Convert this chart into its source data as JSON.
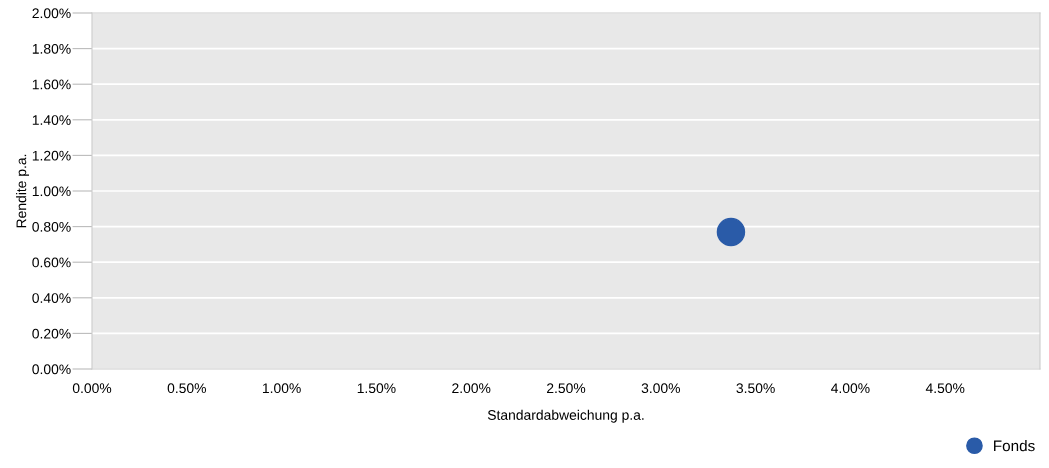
{
  "chart_data": {
    "type": "scatter",
    "xlabel": "Standardabweichung p.a.",
    "ylabel": "Rendite p.a.",
    "x": [
      3.37
    ],
    "series": [
      {
        "name": "Fonds",
        "color": "#2a5ba8",
        "values": [
          0.77
        ]
      }
    ],
    "xlim": [
      0,
      5
    ],
    "ylim": [
      0,
      2
    ],
    "xticks": [
      {
        "value": 0,
        "label": "0.00%"
      },
      {
        "value": 0.5,
        "label": "0.50%"
      },
      {
        "value": 1,
        "label": "1.00%"
      },
      {
        "value": 1.5,
        "label": "1.50%"
      },
      {
        "value": 2,
        "label": "2.00%"
      },
      {
        "value": 2.5,
        "label": "2.50%"
      },
      {
        "value": 3,
        "label": "3.00%"
      },
      {
        "value": 3.5,
        "label": "3.50%"
      },
      {
        "value": 4,
        "label": "4.00%"
      },
      {
        "value": 4.5,
        "label": "4.50%"
      }
    ],
    "yticks": [
      {
        "value": 0,
        "label": "0.00%"
      },
      {
        "value": 0.2,
        "label": "0.20%"
      },
      {
        "value": 0.4,
        "label": "0.40%"
      },
      {
        "value": 0.6,
        "label": "0.60%"
      },
      {
        "value": 0.8,
        "label": "0.80%"
      },
      {
        "value": 1,
        "label": "1.00%"
      },
      {
        "value": 1.2,
        "label": "1.20%"
      },
      {
        "value": 1.4,
        "label": "1.40%"
      },
      {
        "value": 1.6,
        "label": "1.60%"
      },
      {
        "value": 1.8,
        "label": "1.80%"
      },
      {
        "value": 2,
        "label": "2.00%"
      }
    ],
    "grid": "y",
    "legend": "bottom right",
    "marker": "circle"
  }
}
